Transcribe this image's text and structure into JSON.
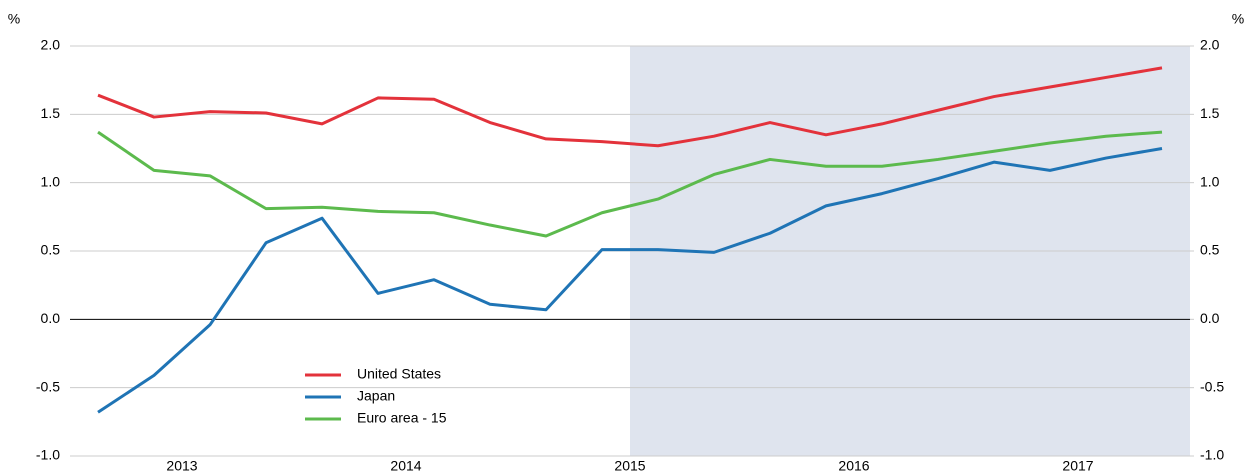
{
  "chart_data": {
    "type": "line",
    "y_label": "%",
    "y2_label": "%",
    "x": [
      2013.125,
      2013.375,
      2013.625,
      2013.875,
      2014.125,
      2014.375,
      2014.625,
      2014.875,
      2015.125,
      2015.375,
      2015.625,
      2015.875,
      2016.125,
      2016.375,
      2016.625,
      2016.875,
      2017.125,
      2017.375,
      2017.625,
      2017.875
    ],
    "series": [
      {
        "name": "United States",
        "color": "#e3323b",
        "values": [
          1.64,
          1.48,
          1.52,
          1.51,
          1.43,
          1.62,
          1.61,
          1.44,
          1.32,
          1.3,
          1.27,
          1.34,
          1.44,
          1.35,
          1.43,
          1.53,
          1.63,
          1.7,
          1.77,
          1.84
        ]
      },
      {
        "name": "Japan",
        "color": "#1f74b5",
        "values": [
          -0.68,
          -0.41,
          -0.04,
          0.56,
          0.74,
          0.19,
          0.29,
          0.11,
          0.07,
          0.51,
          0.51,
          0.49,
          0.63,
          0.83,
          0.92,
          1.03,
          1.15,
          1.09,
          1.18,
          1.25
        ]
      },
      {
        "name": "Euro area - 15",
        "color": "#5cba4d",
        "values": [
          1.37,
          1.09,
          1.05,
          0.81,
          0.82,
          0.79,
          0.78,
          0.69,
          0.61,
          0.78,
          0.88,
          1.06,
          1.17,
          1.12,
          1.12,
          1.17,
          1.23,
          1.29,
          1.34,
          1.37
        ]
      }
    ],
    "xlim": [
      2013,
      2018
    ],
    "xticks": [
      {
        "value": 2013.5,
        "label": "2013"
      },
      {
        "value": 2014.5,
        "label": "2014"
      },
      {
        "value": 2015.5,
        "label": "2015"
      },
      {
        "value": 2016.5,
        "label": "2016"
      },
      {
        "value": 2017.5,
        "label": "2017"
      }
    ],
    "ylim": [
      -1,
      2
    ],
    "yticks": [
      {
        "value": -1,
        "label": "-1.0"
      },
      {
        "value": -0.5,
        "label": "-0.5"
      },
      {
        "value": 0,
        "label": "0.0"
      },
      {
        "value": 0.5,
        "label": "0.5"
      },
      {
        "value": 1,
        "label": "1.0"
      },
      {
        "value": 1.5,
        "label": "1.5"
      },
      {
        "value": 2,
        "label": "2.0"
      }
    ],
    "y2lim": [
      -1,
      2
    ],
    "y2ticks": [
      {
        "value": -1,
        "label": "-1.0"
      },
      {
        "value": -0.5,
        "label": "-0.5"
      },
      {
        "value": 0,
        "label": "0.0"
      },
      {
        "value": 0.5,
        "label": "0.5"
      },
      {
        "value": 1,
        "label": "1.0"
      },
      {
        "value": 1.5,
        "label": "1.5"
      },
      {
        "value": 2,
        "label": "2.0"
      }
    ],
    "shade": [
      2015.5,
      2018
    ],
    "shade_color": "#dfe4ee",
    "grid": true,
    "legend": "lower left"
  }
}
